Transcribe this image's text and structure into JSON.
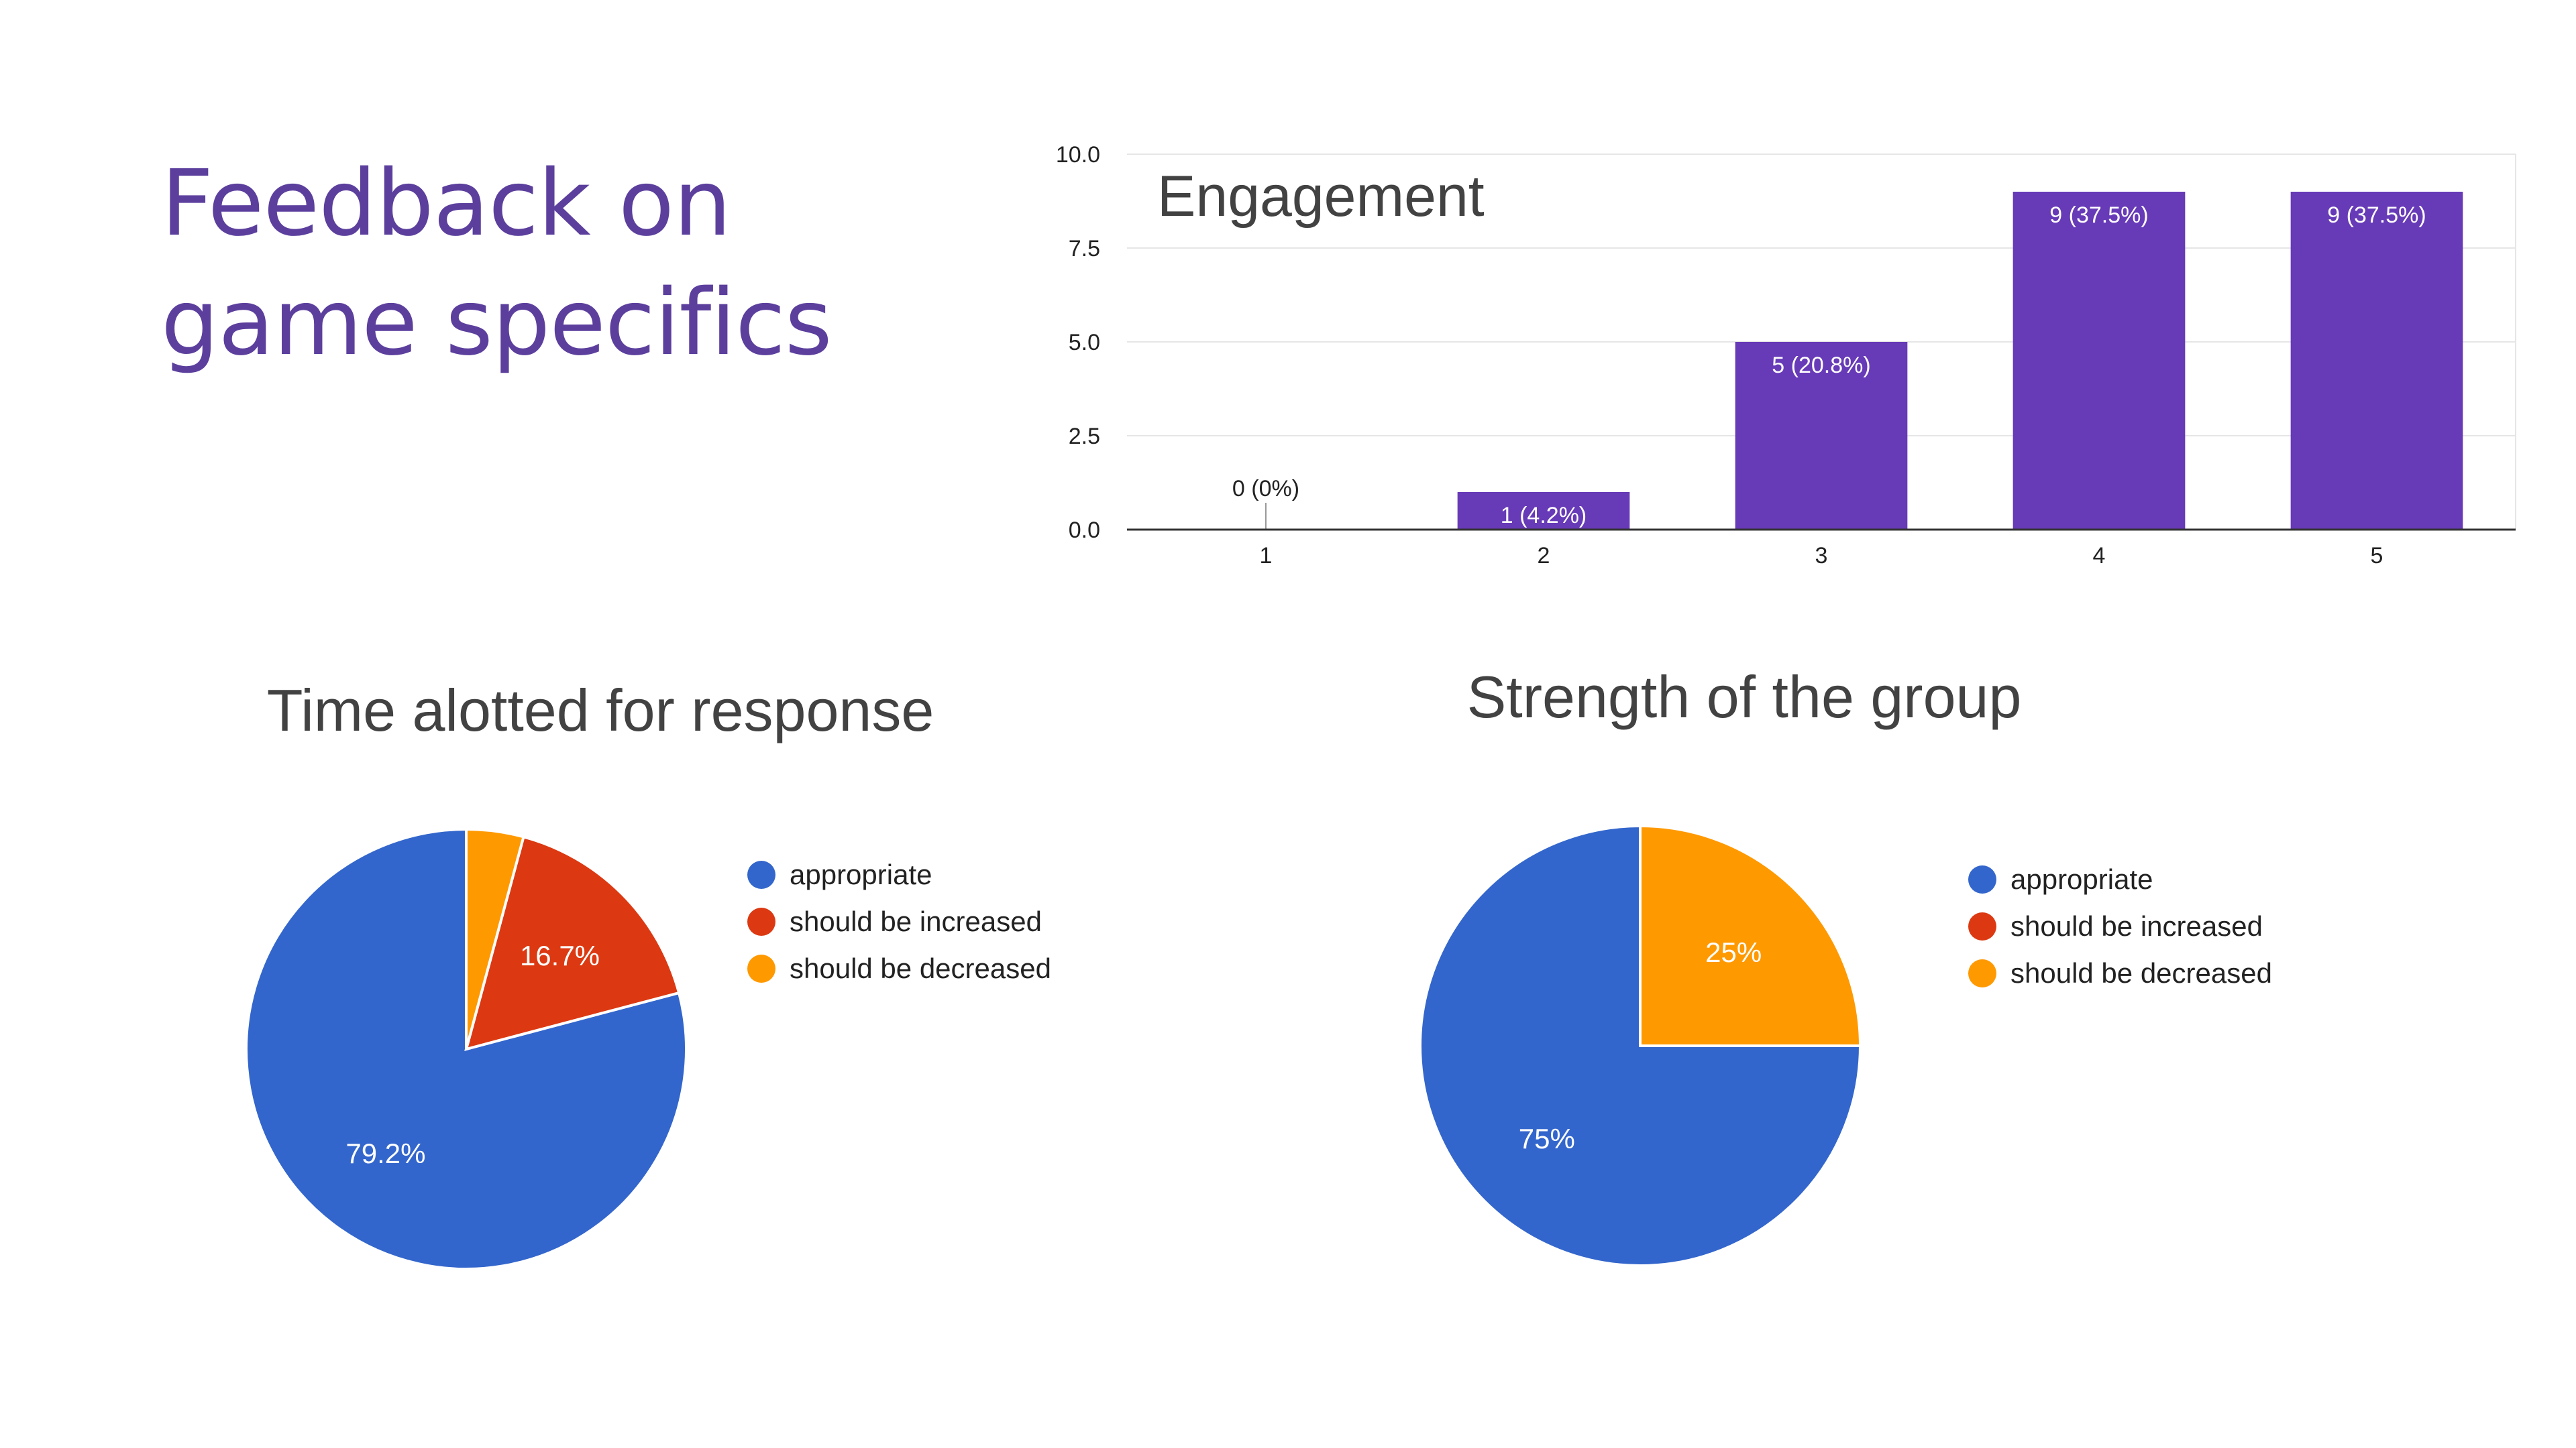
{
  "slide": {
    "title_line1": "Feedback on",
    "title_line2": "game specifics"
  },
  "chart_data": [
    {
      "type": "bar",
      "title": "Engagement",
      "categories": [
        "1",
        "2",
        "3",
        "4",
        "5"
      ],
      "values": [
        0,
        1,
        5,
        9,
        9
      ],
      "labels": [
        "0 (0%)",
        "1 (4.2%)",
        "5 (20.8%)",
        "9 (37.5%)",
        "9 (37.5%)"
      ],
      "ylim": [
        0,
        10
      ],
      "yticks": [
        "0.0",
        "2.5",
        "5.0",
        "7.5",
        "10.0"
      ],
      "grid": true,
      "color": "#673ab7"
    },
    {
      "type": "pie",
      "title": "Time alotted for response",
      "labels": [
        "appropriate",
        "should be increased",
        "should be decreased"
      ],
      "values": [
        79.2,
        16.7,
        4.2
      ],
      "value_labels": [
        "79.2%",
        "16.7%",
        ""
      ],
      "colors": [
        "#3366cc",
        "#dc3912",
        "#ff9900"
      ],
      "legend": "right"
    },
    {
      "type": "pie",
      "title": "Strength of the group",
      "labels": [
        "appropriate",
        "should be increased",
        "should be decreased"
      ],
      "values": [
        75,
        0,
        25
      ],
      "value_labels": [
        "75%",
        "",
        "25%"
      ],
      "colors": [
        "#3366cc",
        "#dc3912",
        "#ff9900"
      ],
      "legend": "right"
    }
  ]
}
